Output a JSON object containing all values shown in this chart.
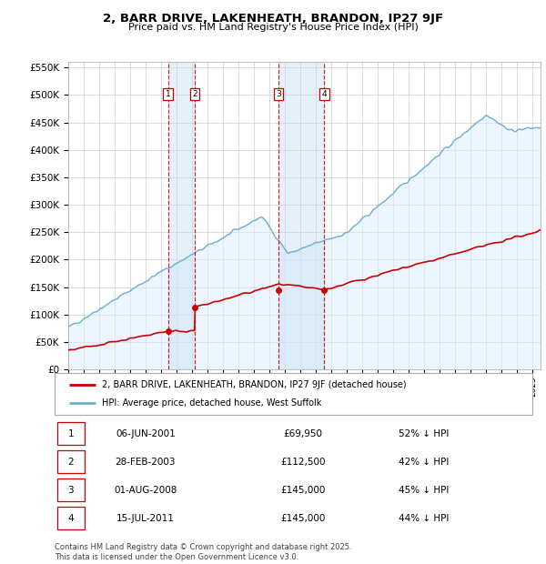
{
  "title": "2, BARR DRIVE, LAKENHEATH, BRANDON, IP27 9JF",
  "subtitle": "Price paid vs. HM Land Registry's House Price Index (HPI)",
  "ylim": [
    0,
    560000
  ],
  "yticks": [
    0,
    50000,
    100000,
    150000,
    200000,
    250000,
    300000,
    350000,
    400000,
    450000,
    500000,
    550000
  ],
  "hpi_color": "#6ab0d4",
  "hpi_fill_color": "#ddeeff",
  "price_color": "#cc0000",
  "purchases": [
    {
      "date_num": 2001.44,
      "price": 69950,
      "label": "1"
    },
    {
      "date_num": 2003.16,
      "price": 112500,
      "label": "2"
    },
    {
      "date_num": 2008.58,
      "price": 145000,
      "label": "3"
    },
    {
      "date_num": 2011.54,
      "price": 145000,
      "label": "4"
    }
  ],
  "table_rows": [
    {
      "num": "1",
      "date": "06-JUN-2001",
      "price": "£69,950",
      "pct": "52% ↓ HPI"
    },
    {
      "num": "2",
      "date": "28-FEB-2003",
      "price": "£112,500",
      "pct": "42% ↓ HPI"
    },
    {
      "num": "3",
      "date": "01-AUG-2008",
      "price": "£145,000",
      "pct": "45% ↓ HPI"
    },
    {
      "num": "4",
      "date": "15-JUL-2011",
      "price": "£145,000",
      "pct": "44% ↓ HPI"
    }
  ],
  "legend_line1": "2, BARR DRIVE, LAKENHEATH, BRANDON, IP27 9JF (detached house)",
  "legend_line2": "HPI: Average price, detached house, West Suffolk",
  "footer": "Contains HM Land Registry data © Crown copyright and database right 2025.\nThis data is licensed under the Open Government Licence v3.0.",
  "xmin": 1995.0,
  "xmax": 2025.5
}
